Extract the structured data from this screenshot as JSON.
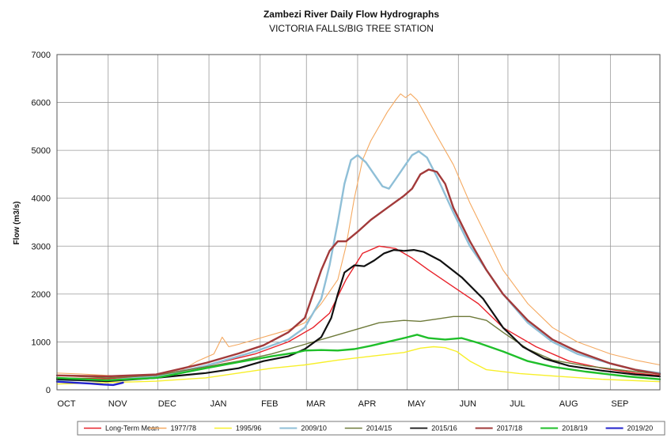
{
  "chart_data": {
    "type": "line",
    "title": "Zambezi River Daily Flow Hydrographs",
    "subtitle": "VICTORIA FALLS/BIG TREE STATION",
    "ylabel": "Flow (m3/s)",
    "xlabel": "",
    "ylim": [
      0,
      7000
    ],
    "yticks": [
      0,
      1000,
      2000,
      3000,
      4000,
      5000,
      6000,
      7000
    ],
    "xlim": [
      0,
      365
    ],
    "x_ticks": [
      {
        "label": "OCT",
        "x": 0
      },
      {
        "label": "NOV",
        "x": 31
      },
      {
        "label": "DEC",
        "x": 61
      },
      {
        "label": "JAN",
        "x": 92
      },
      {
        "label": "FEB",
        "x": 123
      },
      {
        "label": "MAR",
        "x": 151
      },
      {
        "label": "APR",
        "x": 182
      },
      {
        "label": "MAY",
        "x": 212
      },
      {
        "label": "JUN",
        "x": 243
      },
      {
        "label": "JUL",
        "x": 273
      },
      {
        "label": "AUG",
        "x": 304
      },
      {
        "label": "SEP",
        "x": 335
      }
    ],
    "grid": true,
    "legend_position": "bottom",
    "series": [
      {
        "name": "Long-Term Mean",
        "color": "#e8222a",
        "width": 1.4,
        "points": [
          [
            0,
            250
          ],
          [
            30,
            230
          ],
          [
            60,
            300
          ],
          [
            90,
            500
          ],
          [
            120,
            750
          ],
          [
            140,
            1000
          ],
          [
            155,
            1300
          ],
          [
            165,
            1600
          ],
          [
            175,
            2300
          ],
          [
            185,
            2850
          ],
          [
            195,
            3000
          ],
          [
            205,
            2950
          ],
          [
            215,
            2750
          ],
          [
            225,
            2500
          ],
          [
            240,
            2150
          ],
          [
            255,
            1800
          ],
          [
            270,
            1300
          ],
          [
            290,
            900
          ],
          [
            310,
            600
          ],
          [
            330,
            450
          ],
          [
            350,
            350
          ],
          [
            365,
            300
          ]
        ]
      },
      {
        "name": "1977/78",
        "color": "#f5a960",
        "width": 1.1,
        "points": [
          [
            0,
            350
          ],
          [
            15,
            330
          ],
          [
            30,
            300
          ],
          [
            45,
            280
          ],
          [
            60,
            300
          ],
          [
            75,
            400
          ],
          [
            85,
            600
          ],
          [
            95,
            750
          ],
          [
            100,
            1100
          ],
          [
            104,
            900
          ],
          [
            110,
            950
          ],
          [
            120,
            1050
          ],
          [
            130,
            1150
          ],
          [
            140,
            1250
          ],
          [
            150,
            1400
          ],
          [
            160,
            1800
          ],
          [
            170,
            2300
          ],
          [
            175,
            3000
          ],
          [
            180,
            4000
          ],
          [
            185,
            4800
          ],
          [
            190,
            5200
          ],
          [
            195,
            5500
          ],
          [
            200,
            5800
          ],
          [
            205,
            6050
          ],
          [
            208,
            6180
          ],
          [
            211,
            6100
          ],
          [
            214,
            6180
          ],
          [
            218,
            6050
          ],
          [
            222,
            5800
          ],
          [
            230,
            5300
          ],
          [
            240,
            4700
          ],
          [
            250,
            3900
          ],
          [
            260,
            3200
          ],
          [
            270,
            2500
          ],
          [
            285,
            1800
          ],
          [
            300,
            1300
          ],
          [
            315,
            1000
          ],
          [
            335,
            750
          ],
          [
            350,
            620
          ],
          [
            365,
            520
          ]
        ]
      },
      {
        "name": "1995/96",
        "color": "#f7ef2a",
        "width": 1.4,
        "points": [
          [
            0,
            120
          ],
          [
            30,
            150
          ],
          [
            60,
            180
          ],
          [
            90,
            250
          ],
          [
            110,
            350
          ],
          [
            130,
            450
          ],
          [
            150,
            520
          ],
          [
            170,
            620
          ],
          [
            190,
            700
          ],
          [
            210,
            780
          ],
          [
            220,
            870
          ],
          [
            228,
            900
          ],
          [
            235,
            880
          ],
          [
            242,
            800
          ],
          [
            250,
            600
          ],
          [
            260,
            420
          ],
          [
            280,
            340
          ],
          [
            300,
            290
          ],
          [
            330,
            220
          ],
          [
            365,
            170
          ]
        ]
      },
      {
        "name": "2009/10",
        "color": "#8fbfd7",
        "width": 2.4,
        "points": [
          [
            0,
            200
          ],
          [
            30,
            200
          ],
          [
            60,
            280
          ],
          [
            90,
            500
          ],
          [
            120,
            800
          ],
          [
            140,
            1050
          ],
          [
            150,
            1300
          ],
          [
            160,
            1900
          ],
          [
            165,
            2600
          ],
          [
            170,
            3500
          ],
          [
            174,
            4300
          ],
          [
            178,
            4800
          ],
          [
            182,
            4900
          ],
          [
            187,
            4750
          ],
          [
            192,
            4500
          ],
          [
            197,
            4250
          ],
          [
            201,
            4200
          ],
          [
            205,
            4400
          ],
          [
            210,
            4650
          ],
          [
            215,
            4900
          ],
          [
            219,
            4980
          ],
          [
            224,
            4850
          ],
          [
            230,
            4450
          ],
          [
            240,
            3700
          ],
          [
            250,
            3000
          ],
          [
            260,
            2500
          ],
          [
            270,
            2000
          ],
          [
            285,
            1400
          ],
          [
            300,
            1000
          ],
          [
            315,
            750
          ],
          [
            335,
            550
          ],
          [
            350,
            420
          ],
          [
            365,
            350
          ]
        ]
      },
      {
        "name": "2014/15",
        "color": "#6e7a3a",
        "width": 1.4,
        "points": [
          [
            0,
            300
          ],
          [
            30,
            250
          ],
          [
            60,
            300
          ],
          [
            90,
            480
          ],
          [
            110,
            600
          ],
          [
            130,
            750
          ],
          [
            150,
            950
          ],
          [
            165,
            1100
          ],
          [
            180,
            1250
          ],
          [
            195,
            1400
          ],
          [
            210,
            1450
          ],
          [
            220,
            1430
          ],
          [
            230,
            1480
          ],
          [
            240,
            1530
          ],
          [
            250,
            1530
          ],
          [
            260,
            1450
          ],
          [
            270,
            1200
          ],
          [
            285,
            850
          ],
          [
            300,
            620
          ],
          [
            320,
            500
          ],
          [
            345,
            400
          ],
          [
            365,
            330
          ]
        ]
      },
      {
        "name": "2015/16",
        "color": "#111111",
        "width": 2.2,
        "points": [
          [
            0,
            220
          ],
          [
            30,
            180
          ],
          [
            60,
            250
          ],
          [
            90,
            350
          ],
          [
            110,
            450
          ],
          [
            125,
            600
          ],
          [
            140,
            700
          ],
          [
            150,
            850
          ],
          [
            160,
            1100
          ],
          [
            166,
            1500
          ],
          [
            170,
            2000
          ],
          [
            174,
            2450
          ],
          [
            180,
            2600
          ],
          [
            186,
            2580
          ],
          [
            192,
            2700
          ],
          [
            198,
            2850
          ],
          [
            204,
            2920
          ],
          [
            210,
            2900
          ],
          [
            216,
            2920
          ],
          [
            222,
            2880
          ],
          [
            232,
            2700
          ],
          [
            245,
            2350
          ],
          [
            258,
            1900
          ],
          [
            270,
            1300
          ],
          [
            282,
            900
          ],
          [
            295,
            650
          ],
          [
            310,
            500
          ],
          [
            330,
            400
          ],
          [
            350,
            320
          ],
          [
            365,
            280
          ]
        ]
      },
      {
        "name": "2017/18",
        "color": "#a23a3a",
        "width": 2.4,
        "points": [
          [
            0,
            300
          ],
          [
            30,
            280
          ],
          [
            60,
            320
          ],
          [
            90,
            560
          ],
          [
            110,
            760
          ],
          [
            125,
            930
          ],
          [
            140,
            1200
          ],
          [
            150,
            1500
          ],
          [
            155,
            2000
          ],
          [
            160,
            2500
          ],
          [
            165,
            2900
          ],
          [
            170,
            3100
          ],
          [
            175,
            3100
          ],
          [
            182,
            3300
          ],
          [
            190,
            3550
          ],
          [
            200,
            3800
          ],
          [
            210,
            4050
          ],
          [
            215,
            4200
          ],
          [
            220,
            4500
          ],
          [
            225,
            4600
          ],
          [
            230,
            4550
          ],
          [
            235,
            4300
          ],
          [
            240,
            3800
          ],
          [
            250,
            3100
          ],
          [
            260,
            2500
          ],
          [
            270,
            2000
          ],
          [
            285,
            1450
          ],
          [
            300,
            1050
          ],
          [
            315,
            800
          ],
          [
            335,
            550
          ],
          [
            350,
            420
          ],
          [
            365,
            330
          ]
        ]
      },
      {
        "name": "2018/19",
        "color": "#1fbf2a",
        "width": 2.4,
        "points": [
          [
            0,
            250
          ],
          [
            30,
            200
          ],
          [
            60,
            250
          ],
          [
            90,
            450
          ],
          [
            110,
            580
          ],
          [
            130,
            700
          ],
          [
            145,
            780
          ],
          [
            150,
            820
          ],
          [
            160,
            830
          ],
          [
            170,
            820
          ],
          [
            180,
            850
          ],
          [
            190,
            920
          ],
          [
            200,
            1000
          ],
          [
            210,
            1080
          ],
          [
            218,
            1150
          ],
          [
            225,
            1080
          ],
          [
            235,
            1050
          ],
          [
            245,
            1080
          ],
          [
            255,
            980
          ],
          [
            270,
            800
          ],
          [
            285,
            600
          ],
          [
            300,
            480
          ],
          [
            320,
            380
          ],
          [
            345,
            280
          ],
          [
            365,
            220
          ]
        ]
      },
      {
        "name": "2019/20",
        "color": "#2222cc",
        "width": 2.4,
        "points": [
          [
            0,
            170
          ],
          [
            10,
            150
          ],
          [
            20,
            130
          ],
          [
            28,
            110
          ],
          [
            34,
            100
          ],
          [
            40,
            150
          ]
        ]
      }
    ]
  }
}
